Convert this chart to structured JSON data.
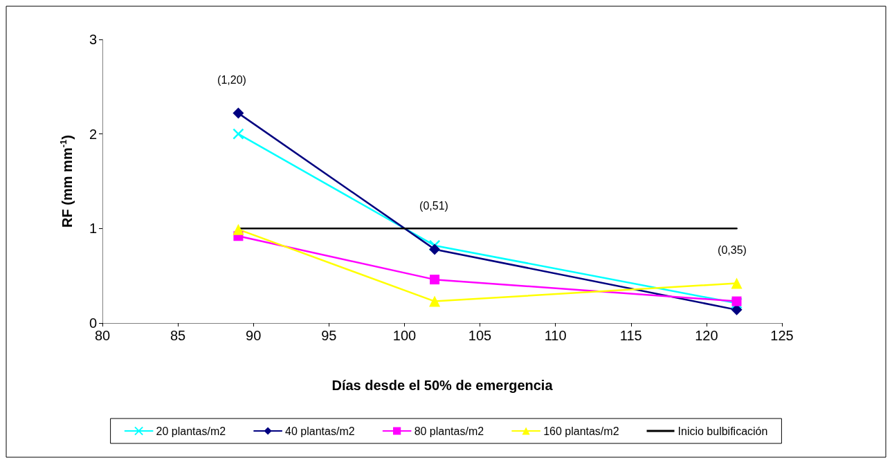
{
  "chart_data": {
    "type": "line",
    "xlabel": "Días desde el 50% de emergencia",
    "ylabel": "RF (mm mm$^{-1}$)",
    "xlim": [
      80,
      125
    ],
    "xticks": [
      80,
      85,
      90,
      95,
      100,
      105,
      110,
      115,
      120,
      125
    ],
    "ylim": [
      0,
      3
    ],
    "yticks": [
      0,
      1,
      2,
      3
    ],
    "grid": false,
    "legend": "bottom",
    "line_style": "solid",
    "series": [
      {
        "name": "20 plantas/m2",
        "color": "#00ffff",
        "marker": "cross",
        "x": [
          89,
          102,
          122
        ],
        "values": [
          2.0,
          0.82,
          0.21
        ]
      },
      {
        "name": "40 plantas/m2",
        "color": "#000080",
        "marker": "diamond",
        "x": [
          89,
          102,
          122
        ],
        "values": [
          2.22,
          0.78,
          0.14
        ]
      },
      {
        "name": "80 plantas/m2",
        "color": "#ff00ff",
        "marker": "square",
        "x": [
          89,
          102,
          122
        ],
        "values": [
          0.92,
          0.46,
          0.23
        ]
      },
      {
        "name": "160 plantas/m2",
        "color": "#ffff00",
        "marker": "triangle",
        "x": [
          89,
          102,
          122
        ],
        "values": [
          0.99,
          0.23,
          0.42
        ]
      },
      {
        "name": "Inicio bulbificación",
        "color": "#000000",
        "marker": "none",
        "x": [
          89,
          122
        ],
        "values": [
          1,
          1
        ]
      }
    ],
    "annotations": [
      "(1,20)",
      "(0,51)",
      "(0,35)"
    ]
  }
}
